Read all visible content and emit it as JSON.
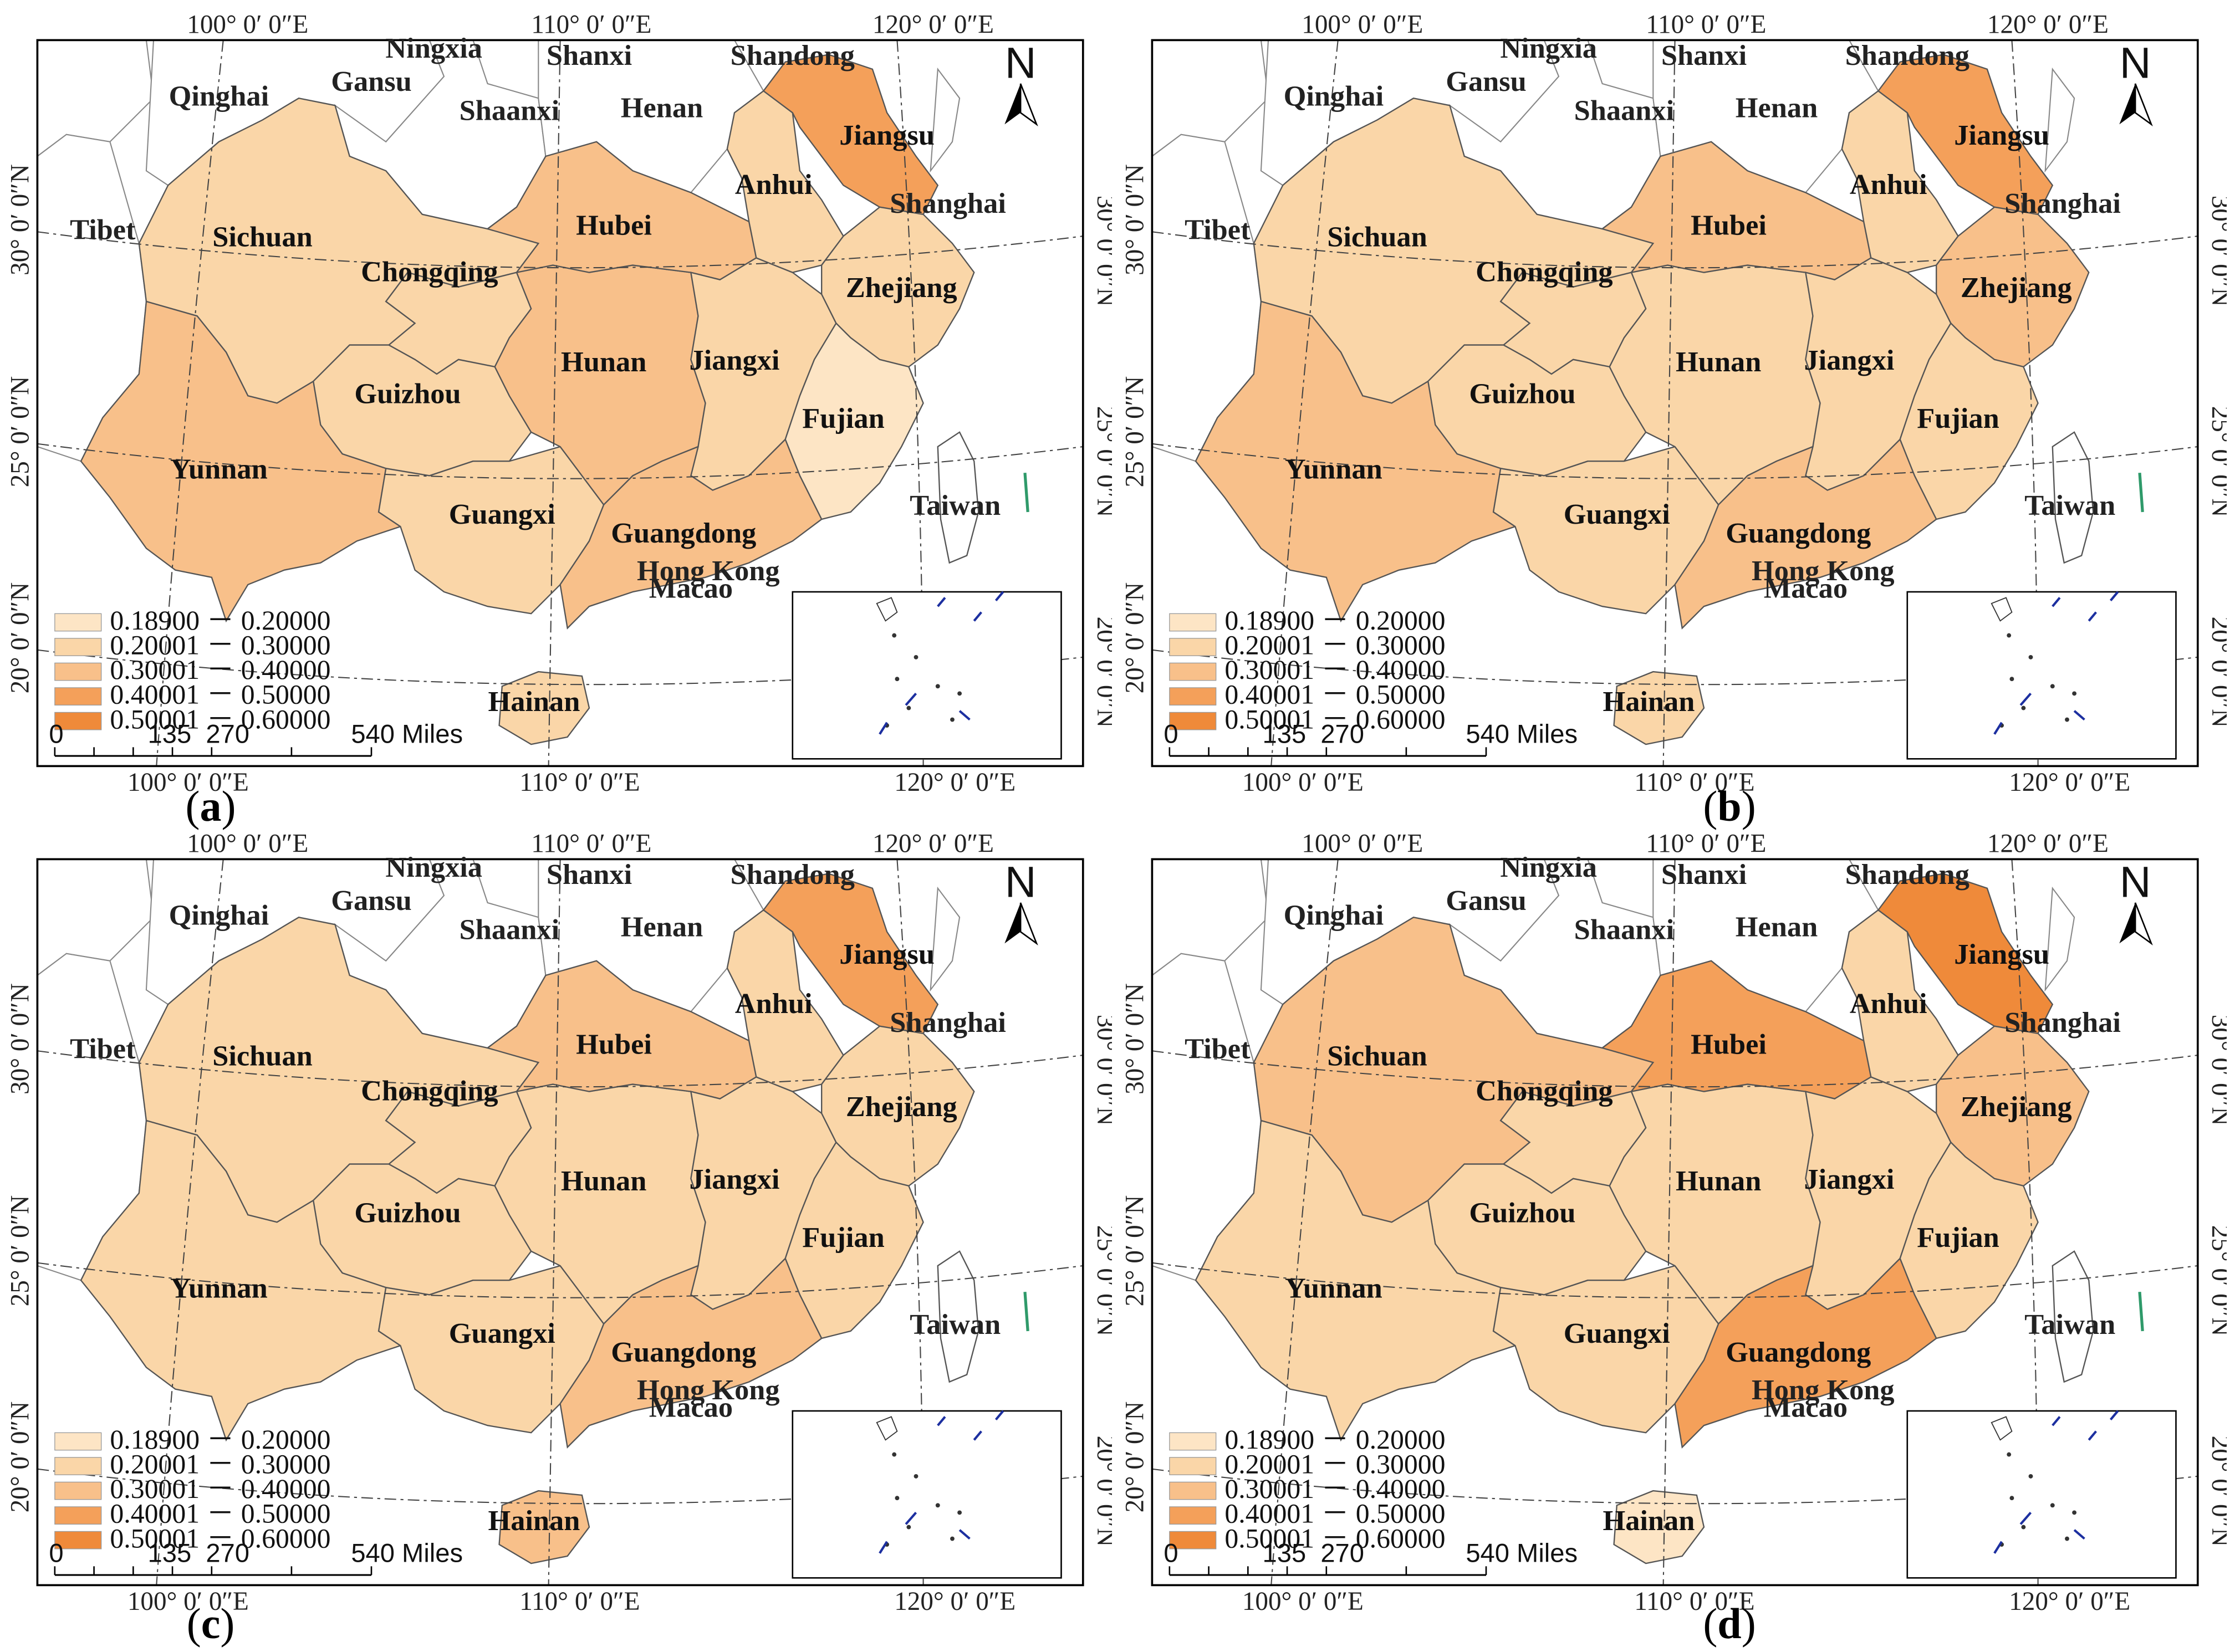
{
  "figure": {
    "panels": [
      {
        "id": "a",
        "caption": "a",
        "fills": {
          "Sichuan": 1,
          "Chongqing": 1,
          "Guizhou": 1,
          "Guangxi": 1,
          "Jiangxi": 1,
          "Anhui": 1,
          "Zhejiang": 1,
          "Hainan": 1,
          "Hubei": 2,
          "Hunan": 2,
          "Yunnan": 2,
          "Guangdong": 2,
          "Jiangsu": 3,
          "Fujian": 0
        }
      },
      {
        "id": "b",
        "caption": "b",
        "fills": {
          "Sichuan": 1,
          "Chongqing": 1,
          "Guizhou": 1,
          "Guangxi": 1,
          "Jiangxi": 1,
          "Anhui": 1,
          "Hunan": 1,
          "Fujian": 1,
          "Hainan": 1,
          "Hubei": 2,
          "Yunnan": 2,
          "Guangdong": 2,
          "Zhejiang": 2,
          "Jiangsu": 3
        }
      },
      {
        "id": "c",
        "caption": "c",
        "fills": {
          "Sichuan": 1,
          "Chongqing": 1,
          "Guizhou": 1,
          "Guangxi": 1,
          "Jiangxi": 1,
          "Anhui": 1,
          "Hunan": 1,
          "Fujian": 1,
          "Yunnan": 1,
          "Zhejiang": 1,
          "Hubei": 2,
          "Guangdong": 2,
          "Hainan": 2,
          "Jiangsu": 3
        }
      },
      {
        "id": "d",
        "caption": "d",
        "fills": {
          "Chongqing": 1,
          "Guizhou": 1,
          "Guangxi": 1,
          "Jiangxi": 1,
          "Anhui": 1,
          "Hunan": 1,
          "Fujian": 1,
          "Yunnan": 1,
          "Sichuan": 2,
          "Zhejiang": 2,
          "Hubei": 3,
          "Guangdong": 3,
          "Jiangsu": 4,
          "Hainan": 0
        }
      }
    ],
    "class_colors": [
      "#fde5c5",
      "#fad6a8",
      "#f8c08a",
      "#f4a05a",
      "#ef8a3a"
    ],
    "legend": [
      "0.18900 － 0.20000",
      "0.20001 － 0.30000",
      "0.30001 － 0.40000",
      "0.40001 － 0.50000",
      "0.50001 － 0.60000"
    ],
    "scale_bar": {
      "ticks": [
        "0",
        "135",
        "270",
        "540 Miles"
      ]
    },
    "north_label": "N",
    "graticule": {
      "top": [
        "100° 0′ 0″E",
        "110° 0′ 0″E",
        "120° 0′ 0″E"
      ],
      "bottom": [
        "100° 0′ 0″E",
        "110° 0′ 0″E",
        "120° 0′ 0″E"
      ],
      "left": [
        "30° 0′ 0″N",
        "25° 0′ 0″N",
        "20° 0′ 0″N"
      ],
      "right": [
        "30° 0′ 0″N",
        "25° 0′ 0″N",
        "20° 0′ 0″N"
      ]
    },
    "provinces": [
      {
        "key": "Sichuan",
        "label": "Sichuan"
      },
      {
        "key": "Chongqing",
        "label": "Chongqing"
      },
      {
        "key": "Guizhou",
        "label": "Guizhou"
      },
      {
        "key": "Yunnan",
        "label": "Yunnan"
      },
      {
        "key": "Guangxi",
        "label": "Guangxi"
      },
      {
        "key": "Hunan",
        "label": "Hunan"
      },
      {
        "key": "Hubei",
        "label": "Hubei"
      },
      {
        "key": "Jiangxi",
        "label": "Jiangxi"
      },
      {
        "key": "Anhui",
        "label": "Anhui"
      },
      {
        "key": "Jiangsu",
        "label": "Jiangsu"
      },
      {
        "key": "Zhejiang",
        "label": "Zhejiang"
      },
      {
        "key": "Fujian",
        "label": "Fujian"
      },
      {
        "key": "Guangdong",
        "label": "Guangdong"
      },
      {
        "key": "Hainan",
        "label": "Hainan"
      }
    ],
    "other_labels": [
      "Qinghai",
      "Gansu",
      "Ningxia",
      "Shaanxi",
      "Shanxi",
      "Henan",
      "Shandong",
      "Tibet",
      "Shanghai",
      "Taiwan",
      "Hong Kong",
      "Macao"
    ]
  }
}
